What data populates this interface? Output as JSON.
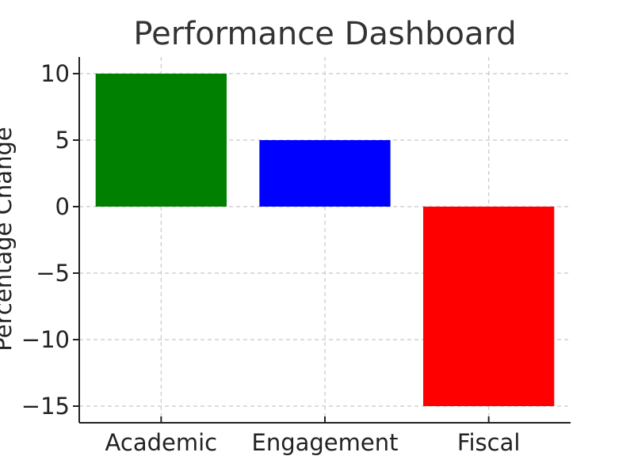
{
  "chart_data": {
    "type": "bar",
    "title": "Performance Dashboard",
    "xlabel": "",
    "ylabel": "Percentage Change",
    "categories": [
      "Academic",
      "Engagement",
      "Fiscal"
    ],
    "values": [
      10,
      5,
      -15
    ],
    "colors": [
      "#008000",
      "#0000ff",
      "#ff0000"
    ],
    "ylim": [
      -16.25,
      11.25
    ],
    "yticks": [
      -15,
      -10,
      -5,
      0,
      5,
      10
    ],
    "ytick_labels": [
      "−15",
      "−10",
      "−5",
      "0",
      "5",
      "10"
    ],
    "grid": true,
    "legend": "none"
  }
}
